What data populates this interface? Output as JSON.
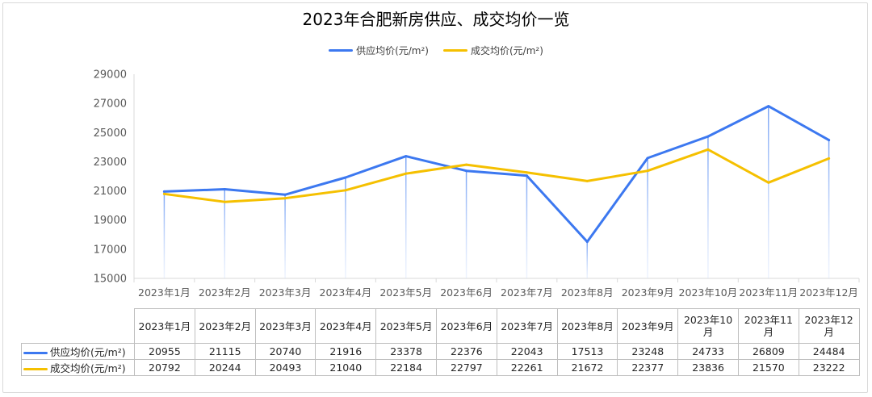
{
  "chart_data": {
    "type": "line",
    "title": "2023年合肥新房供应、成交均价一览",
    "categories": [
      "2023年1月",
      "2023年2月",
      "2023年3月",
      "2023年4月",
      "2023年5月",
      "2023年6月",
      "2023年7月",
      "2023年8月",
      "2023年9月",
      "2023年10月",
      "2023年11月",
      "2023年12月"
    ],
    "table_headers": [
      "2023年1月",
      "2023年2月",
      "2023年3月",
      "2023年4月",
      "2023年5月",
      "2023年6月",
      "2023年7月",
      "2023年8月",
      "2023年9月",
      "2023年10\n月",
      "2023年11\n月",
      "2023年12\n月"
    ],
    "series": [
      {
        "name": "供应均价(元/m²)",
        "color": "#3c78f0",
        "values": [
          20955,
          21115,
          20740,
          21916,
          23378,
          22376,
          22043,
          17513,
          23248,
          24733,
          26809,
          24484
        ]
      },
      {
        "name": "成交均价(元/m²)",
        "color": "#f5c000",
        "values": [
          20792,
          20244,
          20493,
          21040,
          22184,
          22797,
          22261,
          21672,
          22377,
          23836,
          21570,
          23222
        ]
      }
    ],
    "ylim": [
      15000,
      29000
    ],
    "yticks": [
      15000,
      17000,
      19000,
      21000,
      23000,
      25000,
      27000,
      29000
    ],
    "xlabel": "",
    "ylabel": "",
    "legend_position": "top-center",
    "grid": false,
    "data_table": true
  }
}
